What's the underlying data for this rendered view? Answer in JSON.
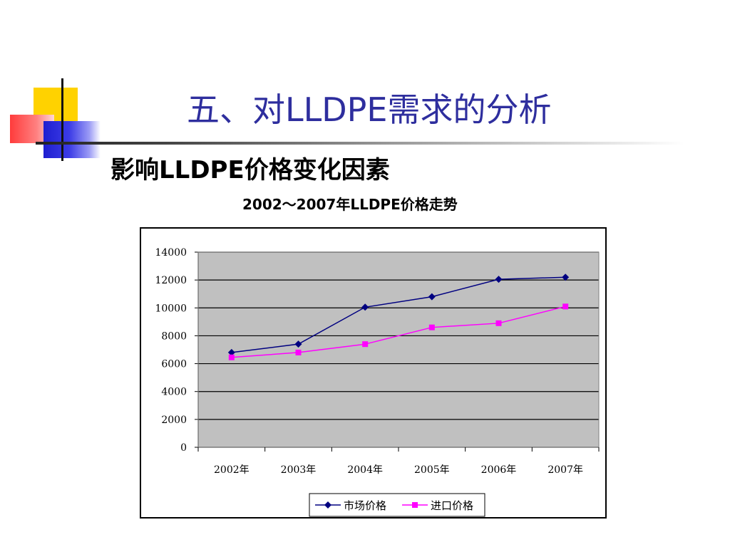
{
  "slide": {
    "title": "五、对LLDPE需求的分析",
    "subtitle": "影响LLDPE价格变化因素",
    "colors": {
      "title": "#2e2e9e",
      "accent_yellow": "#ffd200",
      "accent_red": "#ff3b3b",
      "accent_blue": "#1f1fd0"
    }
  },
  "chart_data": {
    "type": "line",
    "title": "2002～2007年LLDPE价格走势",
    "categories": [
      "2002年",
      "2003年",
      "2004年",
      "2005年",
      "2006年",
      "2007年"
    ],
    "series": [
      {
        "name": "市场价格",
        "values": [
          6800,
          7400,
          10050,
          10800,
          12050,
          12200
        ],
        "color": "#000080",
        "marker": "diamond"
      },
      {
        "name": "进口价格",
        "values": [
          6450,
          6800,
          7400,
          8600,
          8900,
          10100
        ],
        "color": "#ff00ff",
        "marker": "square"
      }
    ],
    "ylim": [
      0,
      14000
    ],
    "yticks": [
      "0",
      "2000",
      "4000",
      "6000",
      "8000",
      "10000",
      "12000",
      "14000"
    ],
    "grid": true,
    "plot_background": "#c0c0c0",
    "legend": "bottom"
  }
}
